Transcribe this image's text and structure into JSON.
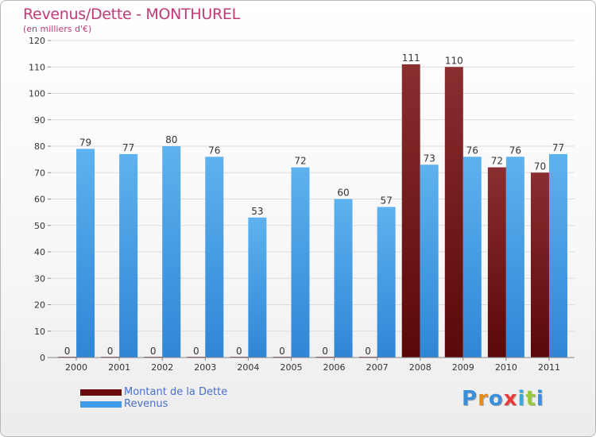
{
  "header": {
    "title": "Revenus/Dette - MONTHUREL",
    "subtitle": "(en milliers d'€)"
  },
  "legend": {
    "items": [
      {
        "label": "Montant de la Dette",
        "color": "#6b0a0a"
      },
      {
        "label": "Revenus",
        "color": "#3f9be6"
      }
    ]
  },
  "brand": {
    "letters": [
      "P",
      "r",
      "o",
      "x",
      "i",
      "t",
      "i"
    ],
    "colors": [
      "#3a8fd8",
      "#e88a1a",
      "#3a8fd8",
      "#e83a3a",
      "#3aa8d8",
      "#9ac83a",
      "#3a8fd8"
    ]
  },
  "chart_data": {
    "type": "bar",
    "title": "Revenus/Dette - MONTHUREL",
    "subtitle": "(en milliers d'€)",
    "categories": [
      "2000",
      "2001",
      "2002",
      "2003",
      "2004",
      "2005",
      "2006",
      "2007",
      "2008",
      "2009",
      "2010",
      "2011"
    ],
    "series": [
      {
        "name": "Montant de la Dette",
        "color": "#7a1f22",
        "values": [
          0,
          0,
          0,
          0,
          0,
          0,
          0,
          0,
          111,
          110,
          72,
          70
        ]
      },
      {
        "name": "Revenus",
        "color": "#4aa3e8",
        "values": [
          79,
          77,
          80,
          76,
          53,
          72,
          60,
          57,
          73,
          76,
          76,
          77
        ]
      }
    ],
    "yticks": [
      "0",
      "10",
      "20",
      "30",
      "40",
      "50",
      "60",
      "70",
      "80",
      "90",
      "100",
      "110",
      "120"
    ],
    "ylim": [
      0,
      120
    ],
    "grid": true,
    "legend_position": "bottom-left"
  }
}
